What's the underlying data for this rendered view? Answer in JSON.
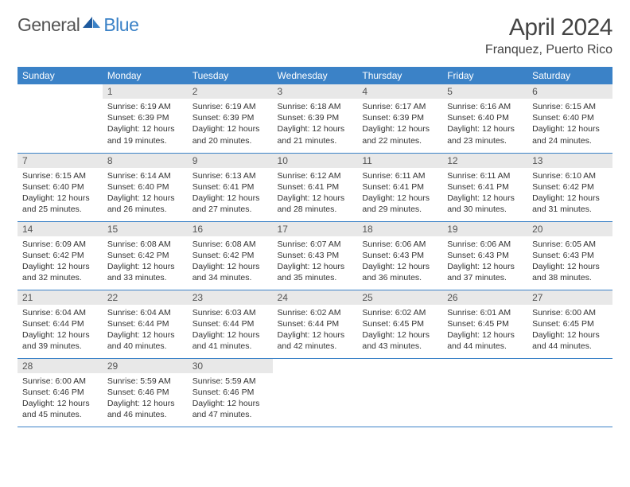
{
  "logo": {
    "part1": "General",
    "part2": "Blue"
  },
  "title": "April 2024",
  "location": "Franquez, Puerto Rico",
  "weekdays": [
    "Sunday",
    "Monday",
    "Tuesday",
    "Wednesday",
    "Thursday",
    "Friday",
    "Saturday"
  ],
  "colors": {
    "header_bg": "#3b82c7",
    "header_fg": "#ffffff",
    "daynum_bg": "#e8e8e8",
    "daynum_fg": "#555555",
    "text": "#333333",
    "rule": "#3b82c7"
  },
  "typography": {
    "title_fontsize": 30,
    "location_fontsize": 16,
    "weekday_fontsize": 12,
    "daynum_fontsize": 12,
    "body_fontsize": 10.5
  },
  "grid": {
    "rows": 5,
    "cols": 7,
    "first_weekday_index": 1,
    "days_in_month": 30
  },
  "days": [
    {
      "n": 1,
      "sunrise": "6:19 AM",
      "sunset": "6:39 PM",
      "daylight": "12 hours and 19 minutes."
    },
    {
      "n": 2,
      "sunrise": "6:19 AM",
      "sunset": "6:39 PM",
      "daylight": "12 hours and 20 minutes."
    },
    {
      "n": 3,
      "sunrise": "6:18 AM",
      "sunset": "6:39 PM",
      "daylight": "12 hours and 21 minutes."
    },
    {
      "n": 4,
      "sunrise": "6:17 AM",
      "sunset": "6:39 PM",
      "daylight": "12 hours and 22 minutes."
    },
    {
      "n": 5,
      "sunrise": "6:16 AM",
      "sunset": "6:40 PM",
      "daylight": "12 hours and 23 minutes."
    },
    {
      "n": 6,
      "sunrise": "6:15 AM",
      "sunset": "6:40 PM",
      "daylight": "12 hours and 24 minutes."
    },
    {
      "n": 7,
      "sunrise": "6:15 AM",
      "sunset": "6:40 PM",
      "daylight": "12 hours and 25 minutes."
    },
    {
      "n": 8,
      "sunrise": "6:14 AM",
      "sunset": "6:40 PM",
      "daylight": "12 hours and 26 minutes."
    },
    {
      "n": 9,
      "sunrise": "6:13 AM",
      "sunset": "6:41 PM",
      "daylight": "12 hours and 27 minutes."
    },
    {
      "n": 10,
      "sunrise": "6:12 AM",
      "sunset": "6:41 PM",
      "daylight": "12 hours and 28 minutes."
    },
    {
      "n": 11,
      "sunrise": "6:11 AM",
      "sunset": "6:41 PM",
      "daylight": "12 hours and 29 minutes."
    },
    {
      "n": 12,
      "sunrise": "6:11 AM",
      "sunset": "6:41 PM",
      "daylight": "12 hours and 30 minutes."
    },
    {
      "n": 13,
      "sunrise": "6:10 AM",
      "sunset": "6:42 PM",
      "daylight": "12 hours and 31 minutes."
    },
    {
      "n": 14,
      "sunrise": "6:09 AM",
      "sunset": "6:42 PM",
      "daylight": "12 hours and 32 minutes."
    },
    {
      "n": 15,
      "sunrise": "6:08 AM",
      "sunset": "6:42 PM",
      "daylight": "12 hours and 33 minutes."
    },
    {
      "n": 16,
      "sunrise": "6:08 AM",
      "sunset": "6:42 PM",
      "daylight": "12 hours and 34 minutes."
    },
    {
      "n": 17,
      "sunrise": "6:07 AM",
      "sunset": "6:43 PM",
      "daylight": "12 hours and 35 minutes."
    },
    {
      "n": 18,
      "sunrise": "6:06 AM",
      "sunset": "6:43 PM",
      "daylight": "12 hours and 36 minutes."
    },
    {
      "n": 19,
      "sunrise": "6:06 AM",
      "sunset": "6:43 PM",
      "daylight": "12 hours and 37 minutes."
    },
    {
      "n": 20,
      "sunrise": "6:05 AM",
      "sunset": "6:43 PM",
      "daylight": "12 hours and 38 minutes."
    },
    {
      "n": 21,
      "sunrise": "6:04 AM",
      "sunset": "6:44 PM",
      "daylight": "12 hours and 39 minutes."
    },
    {
      "n": 22,
      "sunrise": "6:04 AM",
      "sunset": "6:44 PM",
      "daylight": "12 hours and 40 minutes."
    },
    {
      "n": 23,
      "sunrise": "6:03 AM",
      "sunset": "6:44 PM",
      "daylight": "12 hours and 41 minutes."
    },
    {
      "n": 24,
      "sunrise": "6:02 AM",
      "sunset": "6:44 PM",
      "daylight": "12 hours and 42 minutes."
    },
    {
      "n": 25,
      "sunrise": "6:02 AM",
      "sunset": "6:45 PM",
      "daylight": "12 hours and 43 minutes."
    },
    {
      "n": 26,
      "sunrise": "6:01 AM",
      "sunset": "6:45 PM",
      "daylight": "12 hours and 44 minutes."
    },
    {
      "n": 27,
      "sunrise": "6:00 AM",
      "sunset": "6:45 PM",
      "daylight": "12 hours and 44 minutes."
    },
    {
      "n": 28,
      "sunrise": "6:00 AM",
      "sunset": "6:46 PM",
      "daylight": "12 hours and 45 minutes."
    },
    {
      "n": 29,
      "sunrise": "5:59 AM",
      "sunset": "6:46 PM",
      "daylight": "12 hours and 46 minutes."
    },
    {
      "n": 30,
      "sunrise": "5:59 AM",
      "sunset": "6:46 PM",
      "daylight": "12 hours and 47 minutes."
    }
  ],
  "labels": {
    "sunrise": "Sunrise:",
    "sunset": "Sunset:",
    "daylight": "Daylight:"
  }
}
